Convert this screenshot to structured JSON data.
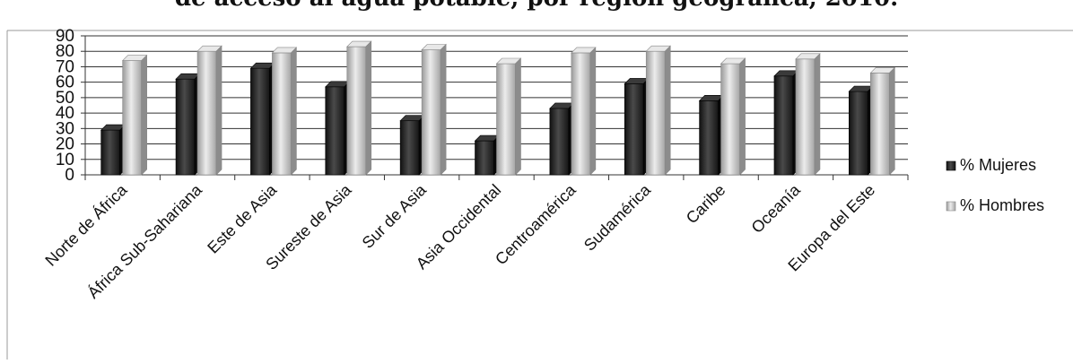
{
  "chart_data": {
    "type": "bar",
    "title": "de acceso al agua potable, por región geográfica, 2010.",
    "xlabel": "",
    "ylabel": "",
    "ylim": [
      0,
      90
    ],
    "yticks": [
      0,
      10,
      20,
      30,
      40,
      50,
      60,
      70,
      80,
      90
    ],
    "grid": true,
    "legend_position": "right",
    "bar_style": "3d",
    "categories": [
      "Norte de África",
      "África Sub-Sahariana",
      "Este de Asia",
      "Sureste de Asia",
      "Sur de Asia",
      "Asia Occidental",
      "Centroamérica",
      "Sudamérica",
      "Caribe",
      "Oceanía",
      "Europa del Este"
    ],
    "series": [
      {
        "name": "% Mujeres",
        "color": "#1f1f1f",
        "values": [
          29,
          62,
          69,
          57,
          35,
          22,
          43,
          59,
          48,
          64,
          54
        ]
      },
      {
        "name": "% Hombres",
        "color": "#c8c8c8",
        "values": [
          74,
          80,
          79,
          83,
          81,
          72,
          79,
          80,
          72,
          75,
          66
        ]
      }
    ]
  }
}
